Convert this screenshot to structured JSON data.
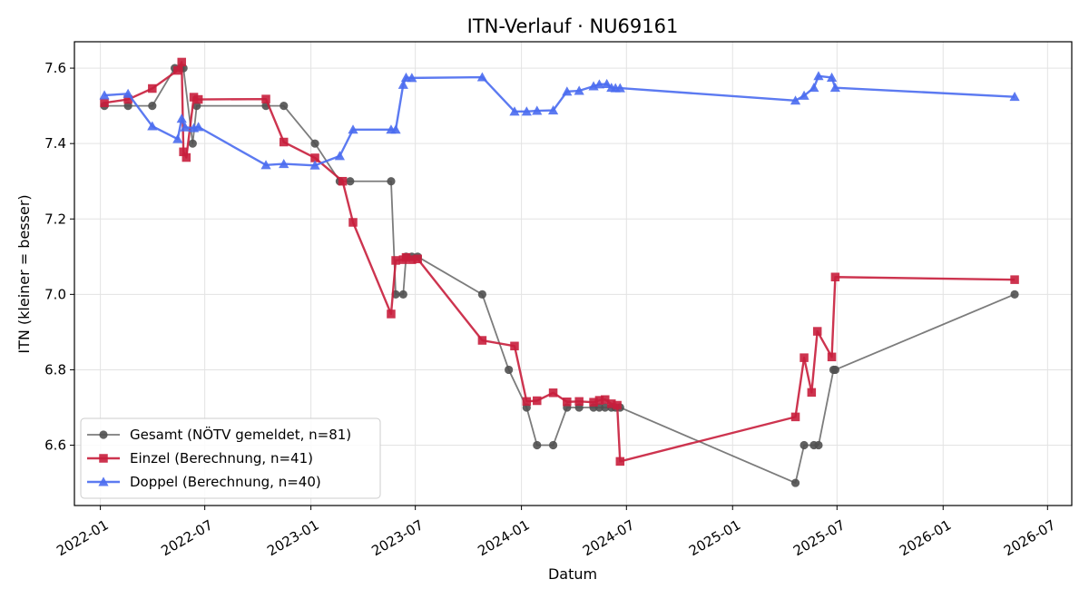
{
  "chart_data": {
    "type": "line",
    "title": "ITN-Verlauf · NU69161",
    "xlabel": "Datum",
    "ylabel": "ITN  (kleiner = besser)",
    "xlim": [
      "2021-11-17",
      "2026-08-12"
    ],
    "ylim": [
      6.44,
      7.67
    ],
    "x_ticks": [
      "2022-01",
      "2022-07",
      "2023-01",
      "2023-07",
      "2024-01",
      "2024-07",
      "2025-01",
      "2025-07",
      "2026-01",
      "2026-07"
    ],
    "y_ticks": [
      6.6,
      6.8,
      7.0,
      7.2,
      7.4,
      7.6
    ],
    "grid": true,
    "legend": "lower-left",
    "series": [
      {
        "name": "Gesamt (NÖTV gemeldet, n=81)",
        "color": "#505050",
        "marker": "circle",
        "points": [
          [
            "2022-01-08",
            7.5
          ],
          [
            "2022-02-18",
            7.5
          ],
          [
            "2022-04-01",
            7.5
          ],
          [
            "2022-05-10",
            7.6
          ],
          [
            "2022-05-20",
            7.6
          ],
          [
            "2022-05-25",
            7.6
          ],
          [
            "2022-06-10",
            7.4
          ],
          [
            "2022-06-17",
            7.5
          ],
          [
            "2022-10-15",
            7.5
          ],
          [
            "2022-11-15",
            7.5
          ],
          [
            "2023-01-08",
            7.4
          ],
          [
            "2023-02-20",
            7.3
          ],
          [
            "2023-03-10",
            7.3
          ],
          [
            "2023-05-20",
            7.3
          ],
          [
            "2023-05-28",
            7.0
          ],
          [
            "2023-06-10",
            7.0
          ],
          [
            "2023-06-15",
            7.1
          ],
          [
            "2023-06-25",
            7.1
          ],
          [
            "2023-07-05",
            7.1
          ],
          [
            "2023-10-25",
            7.0
          ],
          [
            "2023-12-10",
            6.8
          ],
          [
            "2024-01-10",
            6.7
          ],
          [
            "2024-01-28",
            6.6
          ],
          [
            "2024-02-25",
            6.6
          ],
          [
            "2024-03-20",
            6.7
          ],
          [
            "2024-04-10",
            6.7
          ],
          [
            "2024-05-05",
            6.7
          ],
          [
            "2024-05-15",
            6.7
          ],
          [
            "2024-05-25",
            6.7
          ],
          [
            "2024-06-05",
            6.7
          ],
          [
            "2024-06-12",
            6.7
          ],
          [
            "2024-06-20",
            6.7
          ],
          [
            "2025-04-20",
            6.5
          ],
          [
            "2025-05-05",
            6.6
          ],
          [
            "2025-05-22",
            6.6
          ],
          [
            "2025-05-30",
            6.6
          ],
          [
            "2025-06-25",
            6.8
          ],
          [
            "2025-06-28",
            6.8
          ],
          [
            "2026-05-05",
            7.0
          ]
        ]
      },
      {
        "name": "Einzel (Berechnung, n=41)",
        "color": "#c81e3c",
        "marker": "square",
        "points": [
          [
            "2022-01-08",
            7.508
          ],
          [
            "2022-02-18",
            7.517
          ],
          [
            "2022-04-01",
            7.546
          ],
          [
            "2022-05-15",
            7.594
          ],
          [
            "2022-05-22",
            7.616
          ],
          [
            "2022-05-25",
            7.378
          ],
          [
            "2022-05-30",
            7.363
          ],
          [
            "2022-06-12",
            7.523
          ],
          [
            "2022-06-20",
            7.517
          ],
          [
            "2022-10-15",
            7.518
          ],
          [
            "2022-11-15",
            7.404
          ],
          [
            "2023-01-08",
            7.362
          ],
          [
            "2023-02-25",
            7.3
          ],
          [
            "2023-03-15",
            7.191
          ],
          [
            "2023-05-20",
            6.948
          ],
          [
            "2023-05-28",
            7.09
          ],
          [
            "2023-06-10",
            7.092
          ],
          [
            "2023-06-15",
            7.098
          ],
          [
            "2023-06-25",
            7.092
          ],
          [
            "2023-07-05",
            7.094
          ],
          [
            "2023-10-25",
            6.878
          ],
          [
            "2023-12-20",
            6.863
          ],
          [
            "2024-01-10",
            6.716
          ],
          [
            "2024-01-28",
            6.718
          ],
          [
            "2024-02-25",
            6.739
          ],
          [
            "2024-03-20",
            6.715
          ],
          [
            "2024-04-10",
            6.716
          ],
          [
            "2024-05-05",
            6.714
          ],
          [
            "2024-05-15",
            6.719
          ],
          [
            "2024-05-25",
            6.721
          ],
          [
            "2024-06-05",
            6.71
          ],
          [
            "2024-06-15",
            6.706
          ],
          [
            "2024-06-20",
            6.557
          ],
          [
            "2025-04-20",
            6.675
          ],
          [
            "2025-05-05",
            6.832
          ],
          [
            "2025-05-18",
            6.74
          ],
          [
            "2025-05-28",
            6.902
          ],
          [
            "2025-06-22",
            6.834
          ],
          [
            "2025-06-28",
            7.046
          ],
          [
            "2026-05-05",
            7.039
          ]
        ]
      },
      {
        "name": "Doppel (Berechnung, n=40)",
        "color": "#4a6cf0",
        "marker": "triangle",
        "points": [
          [
            "2022-01-08",
            7.528
          ],
          [
            "2022-02-18",
            7.532
          ],
          [
            "2022-04-01",
            7.446
          ],
          [
            "2022-05-15",
            7.412
          ],
          [
            "2022-05-22",
            7.466
          ],
          [
            "2022-05-28",
            7.443
          ],
          [
            "2022-06-12",
            7.441
          ],
          [
            "2022-06-20",
            7.444
          ],
          [
            "2022-10-15",
            7.343
          ],
          [
            "2022-11-15",
            7.346
          ],
          [
            "2023-01-08",
            7.342
          ],
          [
            "2023-02-20",
            7.367
          ],
          [
            "2023-03-15",
            7.437
          ],
          [
            "2023-05-20",
            7.437
          ],
          [
            "2023-05-28",
            7.437
          ],
          [
            "2023-06-10",
            7.556
          ],
          [
            "2023-06-15",
            7.575
          ],
          [
            "2023-06-25",
            7.574
          ],
          [
            "2023-10-25",
            7.576
          ],
          [
            "2023-12-20",
            7.485
          ],
          [
            "2024-01-10",
            7.485
          ],
          [
            "2024-01-28",
            7.487
          ],
          [
            "2024-02-25",
            7.488
          ],
          [
            "2024-03-20",
            7.538
          ],
          [
            "2024-04-10",
            7.54
          ],
          [
            "2024-05-05",
            7.552
          ],
          [
            "2024-05-15",
            7.557
          ],
          [
            "2024-05-28",
            7.558
          ],
          [
            "2024-06-05",
            7.548
          ],
          [
            "2024-06-12",
            7.547
          ],
          [
            "2024-06-20",
            7.547
          ],
          [
            "2025-04-20",
            7.514
          ],
          [
            "2025-05-05",
            7.527
          ],
          [
            "2025-05-22",
            7.548
          ],
          [
            "2025-05-30",
            7.579
          ],
          [
            "2025-06-22",
            7.575
          ],
          [
            "2025-06-28",
            7.548
          ],
          [
            "2026-05-05",
            7.524
          ]
        ]
      }
    ]
  }
}
